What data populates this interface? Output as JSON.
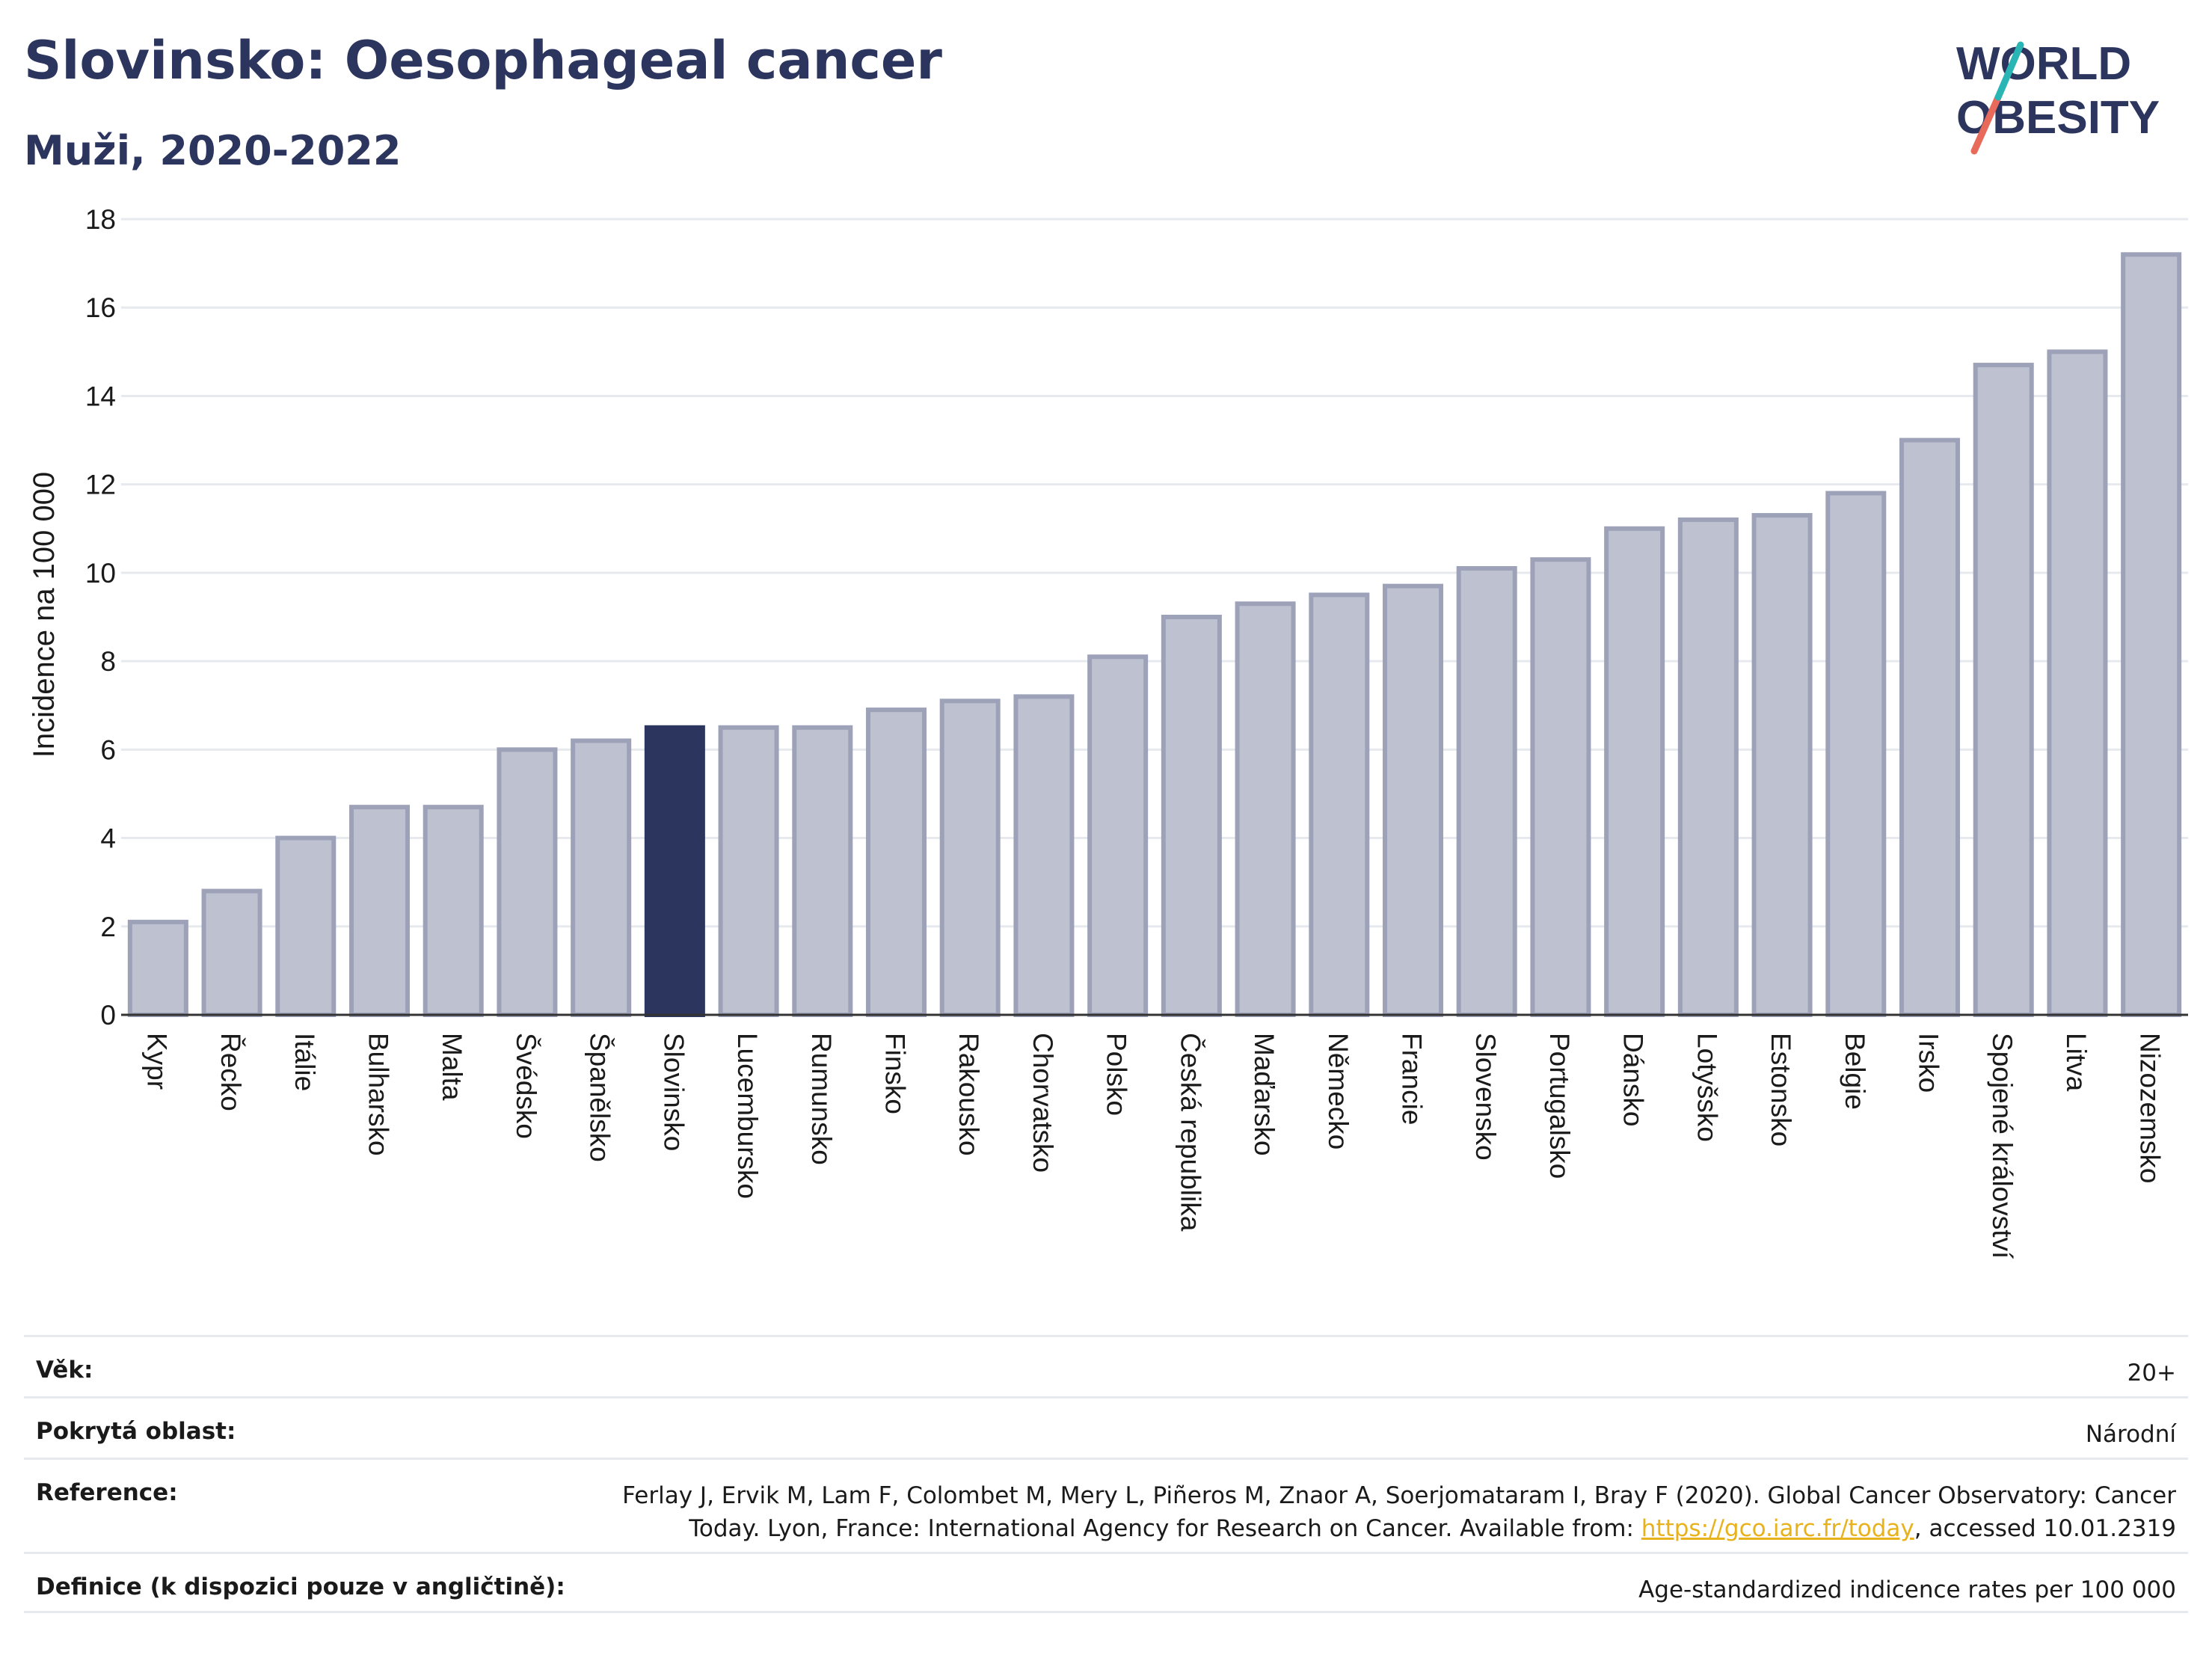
{
  "header": {
    "title": "Slovinsko: Oesophageal cancer",
    "subtitle": "Muži, 2020-2022"
  },
  "logo": {
    "line1": "WORLD",
    "line2": "OBESITY"
  },
  "colors": {
    "bar": "#bec1cf",
    "bar_border": "#9da2b8",
    "highlight": "#2b355e",
    "grid": "#e6e9ee",
    "logo_text": "#2b355e",
    "logo_slash_teal": "#2ab5b5",
    "logo_slash_coral": "#e86a5a"
  },
  "chart_data": {
    "type": "bar",
    "ylabel": "Incidence na 100 000",
    "ylim": [
      0,
      18
    ],
    "yticks": [
      0,
      2,
      4,
      6,
      8,
      10,
      12,
      14,
      16,
      18
    ],
    "grid": true,
    "highlight": "Slovinsko",
    "categories": [
      "Kypr",
      "Řecko",
      "Itálie",
      "Bulharsko",
      "Malta",
      "Švédsko",
      "Španělsko",
      "Slovinsko",
      "Lucembursko",
      "Rumunsko",
      "Finsko",
      "Rakousko",
      "Chorvatsko",
      "Polsko",
      "Česká republika",
      "Maďarsko",
      "Německo",
      "Francie",
      "Slovensko",
      "Portugalsko",
      "Dánsko",
      "Lotyšsko",
      "Estonsko",
      "Belgie",
      "Irsko",
      "Spojené království",
      "Litva",
      "Nizozemsko"
    ],
    "values": [
      2.1,
      2.8,
      4.0,
      4.7,
      4.7,
      6.0,
      6.2,
      6.5,
      6.5,
      6.5,
      6.9,
      7.1,
      7.2,
      8.1,
      9.0,
      9.3,
      9.5,
      9.7,
      10.1,
      10.3,
      11.0,
      11.2,
      11.3,
      11.8,
      13.0,
      14.7,
      15.0,
      17.2
    ]
  },
  "info": {
    "age_label": "Věk:",
    "age_value": "20+",
    "area_label": "Pokrytá oblast:",
    "area_value": "Národní",
    "reference_label": "Reference:",
    "reference_text_1": "Ferlay J, Ervik M, Lam F, Colombet M, Mery L, Piñeros M, Znaor A, Soerjomataram I, Bray F (2020). Global Cancer Observatory: Cancer",
    "reference_text_2": "Today. Lyon, France: International Agency for Research on Cancer. Available from: ",
    "reference_link": "https://gco.iarc.fr/today",
    "reference_text_3": ", accessed 10.01.2319",
    "definition_label": "Definice (k dispozici pouze v angličtině):",
    "definition_value": "Age-standardized indicence rates per 100 000"
  }
}
